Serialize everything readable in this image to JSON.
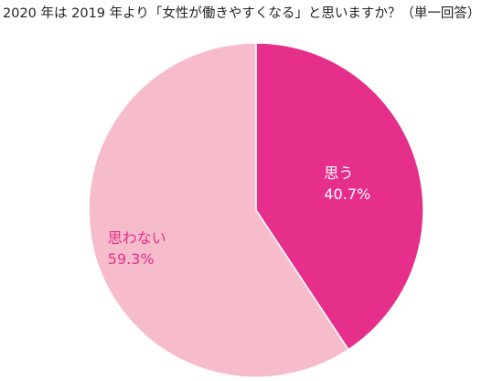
{
  "chart_data": {
    "type": "pie",
    "title": "2020 年は 2019 年より「女性が働きやすくなる」と思いますか？（単一回答）",
    "slices": [
      {
        "label": "思う",
        "value": 40.7,
        "value_label": "40.7%",
        "color": "#e62e8b",
        "text_color": "#ffffff"
      },
      {
        "label": "思わない",
        "value": 59.3,
        "value_label": "59.3%",
        "color": "#f6bccb",
        "text_color": "#e62e8b"
      }
    ],
    "start": "12 o'clock",
    "direction": "clockwise",
    "legend": "none"
  }
}
